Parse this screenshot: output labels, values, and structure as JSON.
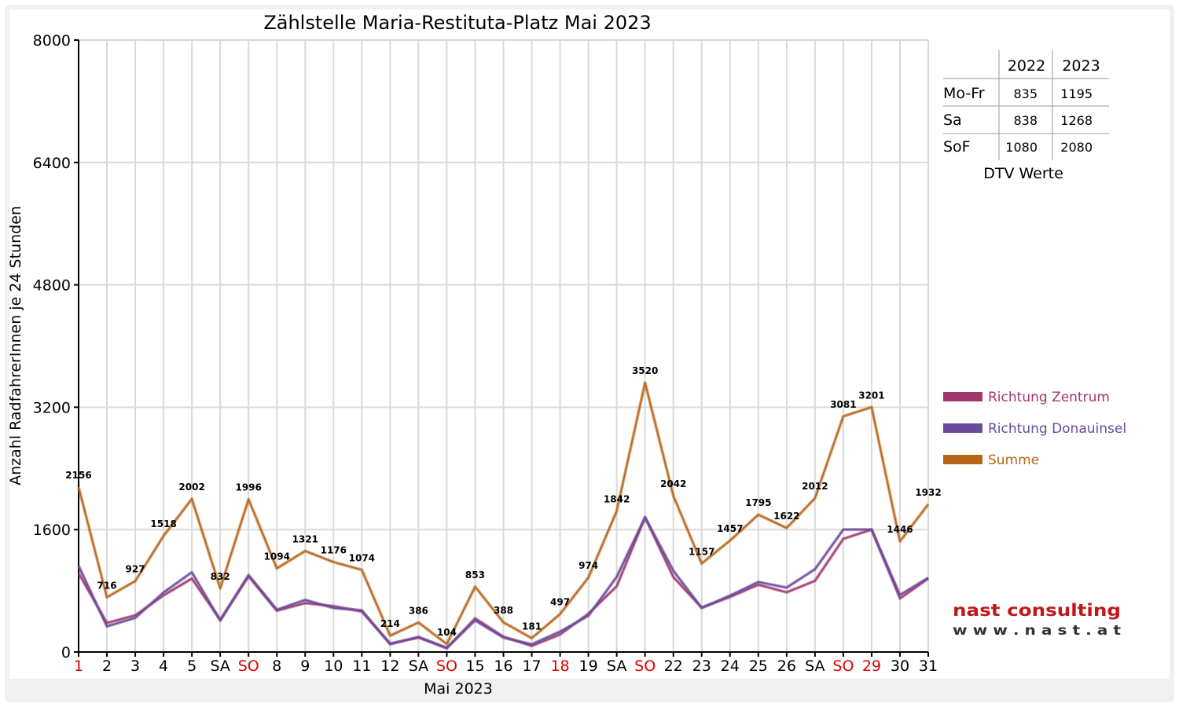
{
  "chart_data": {
    "type": "line",
    "title": "Zählstelle Maria-Restituta-Platz Mai 2023",
    "xlabel": "Mai 2023",
    "ylabel": "Anzahl RadfahrerInnen je 24 Stunden",
    "ylim": [
      0,
      8000
    ],
    "yticks": [
      "0",
      "1600",
      "3200",
      "4800",
      "6400",
      "8000"
    ],
    "grid": true,
    "legend_position": "right",
    "categories": [
      "1",
      "2",
      "3",
      "4",
      "5",
      "SA",
      "SO",
      "8",
      "9",
      "10",
      "11",
      "12",
      "SA",
      "SO",
      "15",
      "16",
      "17",
      "18",
      "19",
      "SA",
      "SO",
      "22",
      "23",
      "24",
      "25",
      "26",
      "SA",
      "SO",
      "29",
      "30",
      "31"
    ],
    "red_categories": [
      0,
      6,
      13,
      17,
      20,
      27,
      28
    ],
    "series": [
      {
        "name": "Richtung Zentrum",
        "color": "#a0386e",
        "values": [
          1030,
          380,
          480,
          740,
          960,
          420,
          990,
          540,
          640,
          600,
          530,
          110,
          190,
          50,
          440,
          200,
          80,
          230,
          500,
          860,
          1760,
          980,
          580,
          720,
          880,
          780,
          930,
          1480,
          1600,
          700,
          960
        ]
      },
      {
        "name": "Richtung Donauinsel",
        "color": "#6a4a9c",
        "values": [
          1126,
          336,
          447,
          778,
          1042,
          412,
          1006,
          554,
          681,
          576,
          544,
          104,
          196,
          54,
          413,
          188,
          101,
          267,
          474,
          982,
          1760,
          1062,
          577,
          737,
          915,
          842,
          1082,
          1601,
          1601,
          746,
          972
        ]
      },
      {
        "name": "Summe",
        "color": "#b8651a",
        "values": [
          2156,
          716,
          927,
          1518,
          2002,
          832,
          1996,
          1094,
          1321,
          1176,
          1074,
          214,
          386,
          104,
          853,
          388,
          181,
          497,
          974,
          1842,
          3520,
          2042,
          1157,
          1457,
          1795,
          1622,
          2012,
          3081,
          3201,
          1446,
          1932
        ],
        "labels": [
          "2156",
          "716",
          "927",
          "1518",
          "2002",
          "832",
          "1996",
          "1094",
          "1321",
          "1176",
          "1074",
          "214",
          "386",
          "104",
          "853",
          "388",
          "181",
          "497",
          "974",
          "1842",
          "3520",
          "2042",
          "1157",
          "1457",
          "1795",
          "1622",
          "2012",
          "3081",
          "3201",
          "1446",
          "1932"
        ]
      }
    ],
    "dtv_table": {
      "caption": "DTV Werte",
      "columns": [
        "2022",
        "2023"
      ],
      "rows": [
        {
          "label": "Mo-Fr",
          "values": [
            "835",
            "1195"
          ]
        },
        {
          "label": "Sa",
          "values": [
            "838",
            "1268"
          ]
        },
        {
          "label": "SoF",
          "values": [
            "1080",
            "2080"
          ]
        }
      ]
    }
  },
  "logo": {
    "line1": "nast consulting",
    "line2": "w w w . n a s t . a t"
  }
}
